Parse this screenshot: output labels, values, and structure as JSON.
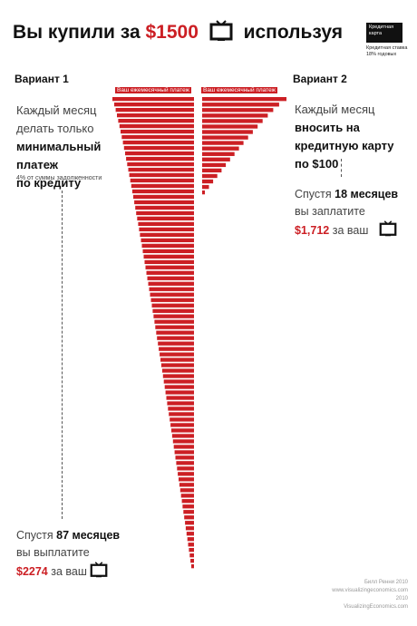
{
  "header": {
    "title_before": "Вы купили за",
    "price": "$1500",
    "title_after": "используя",
    "card_text": "Кредитная карта",
    "card_note": "Кредитная ставка 18% годовых"
  },
  "option1": {
    "label": "Вариант 1",
    "line1": "Каждый месяц",
    "line2": "делать только",
    "line3": "минимальный",
    "line4": "платеж",
    "line5": "по кредиту",
    "note": "4% от суммы задолженности",
    "bar_label": "Ваш ежемесячный платеж",
    "result_prefix": "Спустя",
    "result_months": "87 месяцев",
    "result_line2": "вы выплатите",
    "result_amount": "$2274",
    "result_suffix": "за ваш"
  },
  "option2": {
    "label": "Вариант 2",
    "line1": "Каждый месяц",
    "line2": "вносить на",
    "line3": "кредитную карту",
    "line4": "по $100",
    "bar_label": "Ваш ежемесячный платеж",
    "result_prefix": "Спустя",
    "result_months": "18 месяцев",
    "result_line2": "вы заплатите",
    "result_amount": "$1,712",
    "result_suffix": "за ваш"
  },
  "credits": {
    "line1": "Билл Ренни 2010",
    "line2": "www.visualizingeconomics.com",
    "line3": "2010",
    "line4": "VisualizingEconomics.com"
  },
  "chart_data": {
    "type": "bar",
    "series": [
      {
        "name": "Вариант 1",
        "periods": 87
      },
      {
        "name": "Вариант 2",
        "periods": 18
      }
    ]
  },
  "colors": {
    "accent": "#cc1f24"
  },
  "icons": [
    "tv-icon"
  ]
}
